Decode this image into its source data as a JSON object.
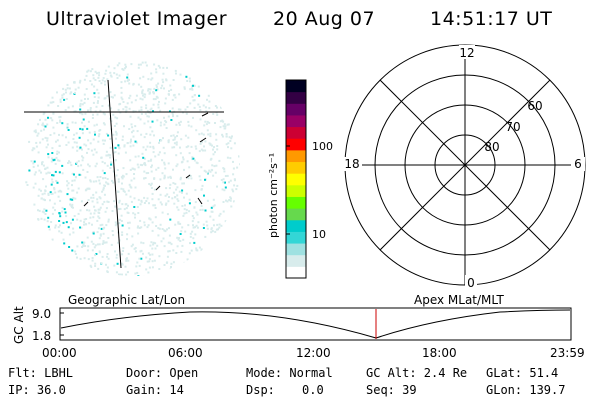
{
  "header": {
    "title": "Ultraviolet Imager",
    "date": "20 Aug 07",
    "time": "14:51:17 UT"
  },
  "colorbar": {
    "label": "photon cm⁻²s⁻¹",
    "ticks": [
      "100",
      "10"
    ],
    "colors": [
      "#ffffff",
      "#d8ecec",
      "#9fe1e1",
      "#33d6d6",
      "#00cccc",
      "#66d94d",
      "#66ff00",
      "#ccff00",
      "#ffff00",
      "#ffcc00",
      "#ff9900",
      "#ff0000",
      "#cc0033",
      "#990066",
      "#660066",
      "#330044",
      "#000022"
    ]
  },
  "polar": {
    "mlt_labels": [
      "12",
      "18",
      "6",
      "0"
    ],
    "lat_labels": [
      "60",
      "70",
      "80"
    ]
  },
  "timeline": {
    "left_title": "Geographic Lat/Lon",
    "right_title": "Apex MLat/MLT",
    "ylabel": "GC Alt",
    "y_ticks": [
      "9.0",
      "1.8"
    ],
    "x_ticks": [
      "00:00",
      "06:00",
      "12:00",
      "18:00",
      "23:59"
    ]
  },
  "info": {
    "row1": {
      "filter": "Flt: LBHL",
      "door": "Door: Open",
      "mode": "Mode: Normal",
      "gc_alt": "GC Alt: 2.4 Re",
      "glat": "GLat: 51.4"
    },
    "row2": {
      "ip": "IP: 36.0",
      "gain": "Gain: 14",
      "dsp": "Dsp:",
      "dsp_value": "0.0",
      "seq": "Seq: 39",
      "glon": "GLon: 139.7"
    }
  },
  "image_colors": {
    "pale": "#d8ecec",
    "cyan": "#00cccc",
    "marker": "#cc0000"
  }
}
